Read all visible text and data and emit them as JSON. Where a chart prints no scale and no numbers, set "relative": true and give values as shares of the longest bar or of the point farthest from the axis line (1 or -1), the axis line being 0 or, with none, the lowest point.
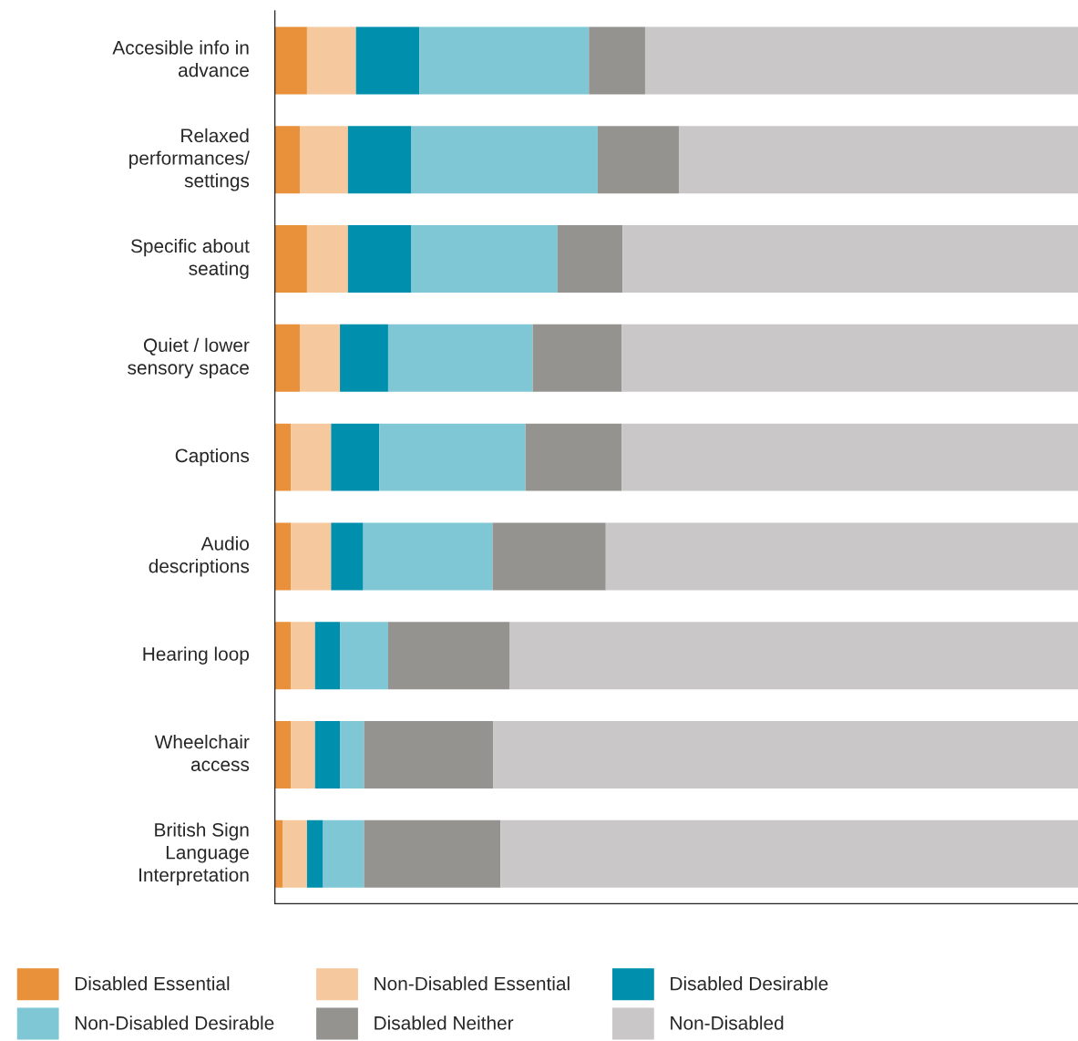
{
  "chart_data": {
    "type": "bar",
    "orientation": "horizontal",
    "stacked": true,
    "relative": true,
    "legend": "bottom",
    "grid": false,
    "categories": [
      "Accesible info in\nadvance",
      "Relaxed\nperformances/\nsettings",
      "Specific about\nseating",
      "Quiet / lower\nsensory space",
      "Captions",
      "Audio\ndescriptions",
      "Hearing loop",
      "Wheelchair\naccess",
      "British Sign\nLanguage\nInterpretation"
    ],
    "series": [
      {
        "name": "Disabled Essential",
        "color": "#e8913a",
        "values": [
          0.04,
          0.031,
          0.04,
          0.031,
          0.02,
          0.02,
          0.02,
          0.02,
          0.01
        ]
      },
      {
        "name": "Non-Disabled Essential",
        "color": "#f5c89d",
        "values": [
          0.061,
          0.06,
          0.051,
          0.05,
          0.05,
          0.05,
          0.03,
          0.03,
          0.03
        ]
      },
      {
        "name": "Disabled Desirable",
        "color": "#0090ad",
        "values": [
          0.079,
          0.079,
          0.079,
          0.06,
          0.06,
          0.04,
          0.031,
          0.031,
          0.02
        ]
      },
      {
        "name": "Non-Disabled Desirable",
        "color": "#80c7d5",
        "values": [
          0.211,
          0.232,
          0.182,
          0.18,
          0.182,
          0.161,
          0.06,
          0.03,
          0.051
        ]
      },
      {
        "name": "Disabled Neither",
        "color": "#94938f",
        "values": [
          0.07,
          0.101,
          0.081,
          0.111,
          0.12,
          0.141,
          0.151,
          0.161,
          0.17
        ]
      },
      {
        "name": "Non-Disabled",
        "color": "#c9c7c8",
        "values": [
          0.539,
          0.497,
          0.567,
          0.568,
          0.568,
          0.588,
          0.708,
          0.728,
          0.719
        ]
      }
    ]
  }
}
